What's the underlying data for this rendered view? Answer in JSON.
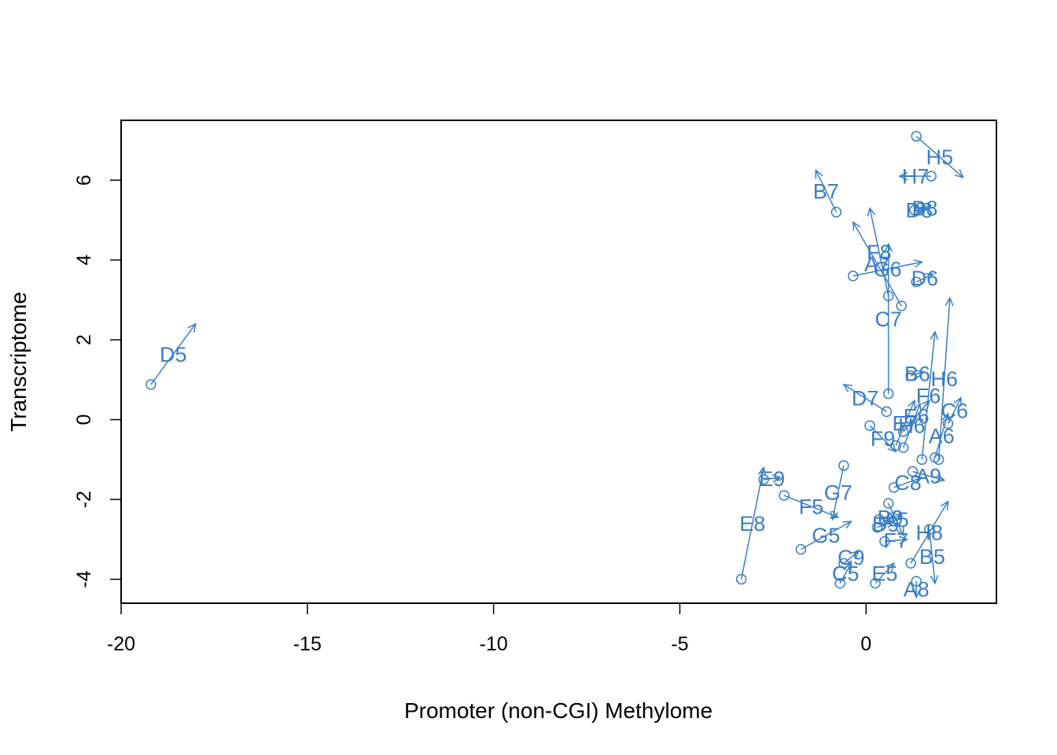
{
  "chart_data": {
    "type": "scatter",
    "title": "",
    "xlabel": "Promoter (non-CGI) Methylome",
    "ylabel": "Transcriptome",
    "xlim": [
      -20,
      3.5
    ],
    "ylim": [
      -4.6,
      7.5
    ],
    "x_ticks": [
      -20,
      -15,
      -10,
      -5,
      0
    ],
    "y_ticks": [
      -4,
      -2,
      0,
      2,
      4,
      6
    ],
    "grid": false,
    "color": "#3a7fc4",
    "arrow_style": "each arrow runs from the first point of a sample to the second point of the same sample; the sample name is written midway along the arrow",
    "arrows": [
      {
        "label": "D5",
        "x0": -19.2,
        "y0": 0.88,
        "x1": -18.0,
        "y1": 2.4
      },
      {
        "label": "H5",
        "x0": 1.35,
        "y0": 7.1,
        "x1": 2.6,
        "y1": 6.07
      },
      {
        "label": "H7",
        "x0": 1.75,
        "y0": 6.1,
        "x1": 0.9,
        "y1": 6.1
      },
      {
        "label": "B7",
        "x0": -0.8,
        "y0": 5.2,
        "x1": -1.35,
        "y1": 6.25
      },
      {
        "label": "B8",
        "x0": 1.45,
        "y0": 5.3,
        "x1": 1.7,
        "y1": 5.3
      },
      {
        "label": "D8",
        "x0": 1.3,
        "y0": 5.25,
        "x1": 1.55,
        "y1": 5.25
      },
      {
        "label": "F8",
        "x0": 0.6,
        "y0": 3.1,
        "x1": 0.1,
        "y1": 5.3
      },
      {
        "label": "A7",
        "x0": 0.95,
        "y0": 2.85,
        "x1": -0.35,
        "y1": 4.95
      },
      {
        "label": "G6",
        "x0": -0.35,
        "y0": 3.6,
        "x1": 1.5,
        "y1": 3.95
      },
      {
        "label": "D6",
        "x0": 1.35,
        "y0": 3.45,
        "x1": 1.8,
        "y1": 3.65
      },
      {
        "label": "C7",
        "x0": 0.6,
        "y0": 0.65,
        "x1": 0.6,
        "y1": 4.4
      },
      {
        "label": "F6",
        "x0": 1.5,
        "y0": -1.0,
        "x1": 1.85,
        "y1": 2.2
      },
      {
        "label": "H6",
        "x0": 1.95,
        "y0": -1.0,
        "x1": 2.25,
        "y1": 3.05
      },
      {
        "label": "B6",
        "x0": 1.2,
        "y0": 1.1,
        "x1": 1.55,
        "y1": 1.2
      },
      {
        "label": "D7",
        "x0": 0.55,
        "y0": 0.2,
        "x1": -0.6,
        "y1": 0.88
      },
      {
        "label": "E7",
        "x0": 0.8,
        "y0": -0.65,
        "x1": 1.3,
        "y1": 0.48
      },
      {
        "label": "E6",
        "x0": 1.0,
        "y0": -0.3,
        "x1": 1.7,
        "y1": 0.48
      },
      {
        "label": "H6",
        "x0": 1.0,
        "y0": -0.7,
        "x1": 1.45,
        "y1": 0.4
      },
      {
        "label": "A6",
        "x0": 1.85,
        "y0": -0.95,
        "x1": 2.2,
        "y1": 0.15
      },
      {
        "label": "C6",
        "x0": 2.2,
        "y0": -0.1,
        "x1": 2.55,
        "y1": 0.55
      },
      {
        "label": "F9",
        "x0": 0.1,
        "y0": -0.15,
        "x1": 0.8,
        "y1": -0.8
      },
      {
        "label": "C8",
        "x0": 0.75,
        "y0": -1.7,
        "x1": 1.5,
        "y1": -1.45
      },
      {
        "label": "A9",
        "x0": 1.25,
        "y0": -1.3,
        "x1": 2.1,
        "y1": -1.52
      },
      {
        "label": "E8",
        "x0": -3.35,
        "y0": -4.0,
        "x1": -2.75,
        "y1": -1.2
      },
      {
        "label": "E9",
        "x0": -2.75,
        "y0": -1.5,
        "x1": -2.3,
        "y1": -1.45
      },
      {
        "label": "F5",
        "x0": -2.2,
        "y0": -1.9,
        "x1": -0.75,
        "y1": -2.45
      },
      {
        "label": "G7",
        "x0": -0.6,
        "y0": -1.15,
        "x1": -0.9,
        "y1": -2.5
      },
      {
        "label": "G5",
        "x0": -1.75,
        "y0": -3.25,
        "x1": -0.4,
        "y1": -2.55
      },
      {
        "label": "A5",
        "x0": 0.6,
        "y0": -2.1,
        "x1": 1.0,
        "y1": -2.9
      },
      {
        "label": "B9",
        "x0": 0.35,
        "y0": -2.5,
        "x1": 0.95,
        "y1": -2.4
      },
      {
        "label": "D9",
        "x0": 0.3,
        "y0": -2.7,
        "x1": 0.75,
        "y1": -2.55
      },
      {
        "label": "F7",
        "x0": 0.5,
        "y0": -3.05,
        "x1": 1.1,
        "y1": -3.0
      },
      {
        "label": "C9",
        "x0": -0.6,
        "y0": -3.6,
        "x1": -0.2,
        "y1": -3.3
      },
      {
        "label": "C5",
        "x0": -0.7,
        "y0": -4.1,
        "x1": -0.4,
        "y1": -3.6
      },
      {
        "label": "E5",
        "x0": 0.25,
        "y0": -4.1,
        "x1": 0.75,
        "y1": -3.6
      },
      {
        "label": "B5",
        "x0": 1.7,
        "y0": -2.75,
        "x1": 1.85,
        "y1": -4.1
      },
      {
        "label": "A8",
        "x0": 1.35,
        "y0": -4.05,
        "x1": 1.35,
        "y1": -4.45
      },
      {
        "label": "H8",
        "x0": 1.2,
        "y0": -3.6,
        "x1": 2.2,
        "y1": -2.05
      }
    ]
  }
}
